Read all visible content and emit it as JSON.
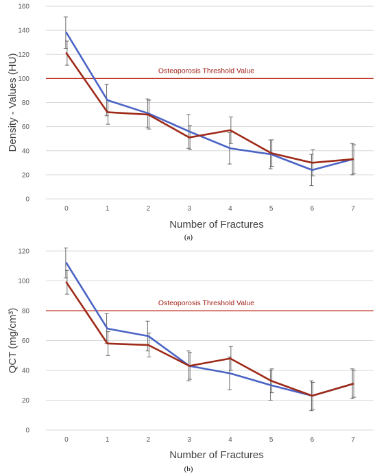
{
  "colors": {
    "blue": "#4a63c4",
    "red": "#9e2a18",
    "threshold": "#c0392b",
    "grid": "#d9d9d9",
    "errorbar": "#595959"
  },
  "chart_data": [
    {
      "type": "line",
      "panel_label": "(a)",
      "xlabel": "Number of Fractures",
      "ylabel": "Density - Values (HU)",
      "categories": [
        "0",
        "1",
        "2",
        "3",
        "4",
        "5",
        "6",
        "7"
      ],
      "ylim": [
        0,
        160
      ],
      "yticks": [
        "0",
        "20",
        "40",
        "60",
        "80",
        "100",
        "120",
        "140",
        "160"
      ],
      "grid": true,
      "threshold": {
        "value": 100,
        "label": "Osteoporosis Threshold Value"
      },
      "series": [
        {
          "color": "blue",
          "values": [
            138,
            82,
            71,
            56,
            42,
            37,
            24,
            33
          ],
          "error": [
            13,
            13,
            12,
            14,
            13,
            12,
            13,
            13
          ]
        },
        {
          "color": "red",
          "values": [
            121,
            72,
            70,
            51,
            57,
            38,
            30,
            33
          ],
          "error": [
            10,
            10,
            12,
            10,
            11,
            11,
            11,
            12
          ]
        }
      ]
    },
    {
      "type": "line",
      "panel_label": "(b)",
      "xlabel": "Number of Fractures",
      "ylabel": "QCT (mg/cm³)",
      "categories": [
        "0",
        "1",
        "2",
        "3",
        "4",
        "5",
        "6",
        "7"
      ],
      "ylim": [
        0,
        120
      ],
      "yticks": [
        "0",
        "20",
        "40",
        "60",
        "80",
        "100",
        "120"
      ],
      "grid": true,
      "threshold": {
        "value": 80,
        "label": "Osteoporosis Threshold Value"
      },
      "series": [
        {
          "color": "blue",
          "values": [
            112,
            68,
            63,
            43,
            38,
            30,
            23,
            31
          ],
          "error": [
            10,
            10,
            10,
            10,
            11,
            10,
            10,
            10
          ]
        },
        {
          "color": "red",
          "values": [
            99,
            58,
            57,
            43,
            48,
            33,
            23,
            31
          ],
          "error": [
            8,
            8,
            8,
            9,
            8,
            8,
            9,
            9
          ]
        }
      ]
    }
  ]
}
